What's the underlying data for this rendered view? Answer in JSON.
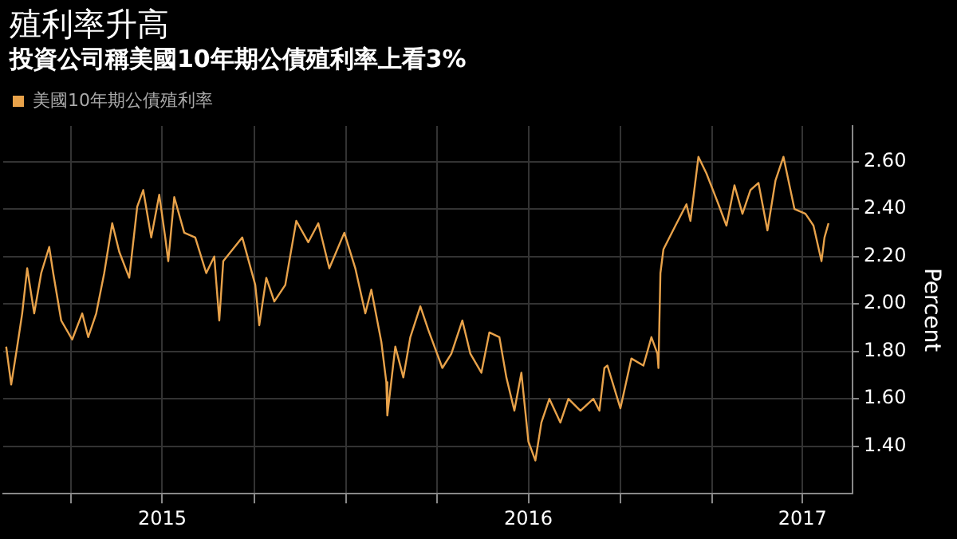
{
  "chart_data": {
    "type": "line",
    "title": "殖利率升高",
    "subtitle": "投資公司稱美國10年期公債殖利率上看3%",
    "ylabel": "Percent",
    "legend": "top left",
    "grid": true,
    "marker": "none",
    "line_style": "solid",
    "xlim": [
      "2015-01-23",
      "2017-05-21"
    ],
    "xticks": [
      {
        "value": "2015-04-01",
        "label": null
      },
      {
        "value": "2015-07-01",
        "label": "2015"
      },
      {
        "value": "2015-10-01",
        "label": null
      },
      {
        "value": "2016-01-01",
        "label": null
      },
      {
        "value": "2016-04-01",
        "label": null
      },
      {
        "value": "2016-07-01",
        "label": "2016"
      },
      {
        "value": "2016-10-01",
        "label": null
      },
      {
        "value": "2017-01-01",
        "label": null
      },
      {
        "value": "2017-04-01",
        "label": "2017"
      }
    ],
    "ylim": [
      1.2,
      2.75
    ],
    "yticks": [
      {
        "value": 1.4,
        "label": "1.40"
      },
      {
        "value": 1.6,
        "label": "1.60"
      },
      {
        "value": 1.8,
        "label": "1.80"
      },
      {
        "value": 2.0,
        "label": "2.00"
      },
      {
        "value": 2.2,
        "label": "2.20"
      },
      {
        "value": 2.4,
        "label": "2.40"
      },
      {
        "value": 2.6,
        "label": "2.60"
      }
    ],
    "series": [
      {
        "name": "美國10年期公債殖利率",
        "color": "#e8a24a",
        "x": [
          "2015-01-26",
          "2015-01-31",
          "2015-02-06",
          "2015-02-11",
          "2015-02-16",
          "2015-02-23",
          "2015-03-02",
          "2015-03-10",
          "2015-03-14",
          "2015-03-22",
          "2015-04-02",
          "2015-04-12",
          "2015-04-18",
          "2015-04-26",
          "2015-05-04",
          "2015-05-12",
          "2015-05-19",
          "2015-05-29",
          "2015-06-06",
          "2015-06-12",
          "2015-06-20",
          "2015-06-28",
          "2015-07-04",
          "2015-07-07",
          "2015-07-13",
          "2015-07-23",
          "2015-08-03",
          "2015-08-14",
          "2015-08-22",
          "2015-08-27",
          "2015-08-31",
          "2015-09-19",
          "2015-10-02",
          "2015-10-06",
          "2015-10-13",
          "2015-10-21",
          "2015-11-01",
          "2015-11-05",
          "2015-11-12",
          "2015-11-24",
          "2015-12-04",
          "2015-12-15",
          "2015-12-30",
          "2016-01-10",
          "2016-01-20",
          "2016-01-26",
          "2016-02-05",
          "2016-02-10",
          "2016-02-11",
          "2016-02-19",
          "2016-02-27",
          "2016-03-05",
          "2016-03-15",
          "2016-03-23",
          "2016-04-06",
          "2016-04-15",
          "2016-04-26",
          "2016-05-04",
          "2016-05-15",
          "2016-05-23",
          "2016-06-02",
          "2016-06-09",
          "2016-06-17",
          "2016-06-24",
          "2016-07-01",
          "2016-07-08",
          "2016-07-14",
          "2016-07-22",
          "2016-08-02",
          "2016-08-10",
          "2016-08-22",
          "2016-09-04",
          "2016-09-10",
          "2016-09-15",
          "2016-09-18",
          "2016-10-01",
          "2016-10-12",
          "2016-10-24",
          "2016-11-01",
          "2016-11-07",
          "2016-11-08",
          "2016-11-10",
          "2016-11-13",
          "2016-11-25",
          "2016-12-06",
          "2016-12-10",
          "2016-12-18",
          "2016-12-26",
          "2017-01-07",
          "2017-01-15",
          "2017-01-23",
          "2017-01-31",
          "2017-02-08",
          "2017-02-16",
          "2017-02-25",
          "2017-03-05",
          "2017-03-13",
          "2017-03-24",
          "2017-04-04",
          "2017-04-12",
          "2017-04-20",
          "2017-04-23",
          "2017-04-27"
        ],
        "values": [
          1.82,
          1.66,
          1.82,
          1.96,
          2.15,
          1.96,
          2.13,
          2.24,
          2.13,
          1.93,
          1.85,
          1.96,
          1.86,
          1.96,
          2.13,
          2.34,
          2.22,
          2.11,
          2.41,
          2.48,
          2.28,
          2.46,
          2.28,
          2.18,
          2.45,
          2.3,
          2.28,
          2.13,
          2.2,
          1.93,
          2.18,
          2.28,
          2.08,
          1.91,
          2.11,
          2.01,
          2.08,
          2.18,
          2.35,
          2.26,
          2.34,
          2.15,
          2.3,
          2.15,
          1.96,
          2.06,
          1.84,
          1.67,
          1.53,
          1.82,
          1.69,
          1.86,
          1.99,
          1.89,
          1.73,
          1.79,
          1.93,
          1.79,
          1.71,
          1.88,
          1.86,
          1.69,
          1.55,
          1.71,
          1.42,
          1.34,
          1.5,
          1.6,
          1.5,
          1.6,
          1.55,
          1.6,
          1.55,
          1.73,
          1.74,
          1.56,
          1.77,
          1.74,
          1.86,
          1.79,
          1.73,
          2.13,
          2.23,
          2.33,
          2.42,
          2.35,
          2.62,
          2.55,
          2.42,
          2.33,
          2.5,
          2.38,
          2.48,
          2.51,
          2.31,
          2.52,
          2.62,
          2.4,
          2.38,
          2.33,
          2.18,
          2.28,
          2.34
        ]
      }
    ]
  }
}
